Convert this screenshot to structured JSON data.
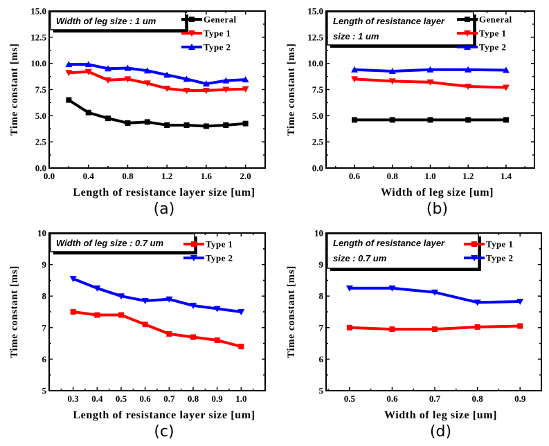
{
  "chart_data": [
    {
      "id": "a",
      "type": "line",
      "panel_label": "(a)",
      "annotation": [
        "Width of leg size : 1 um"
      ],
      "xlabel": "Length of resistance layer size [um]",
      "ylabel": "Time constant [ms]",
      "xlim": [
        0.0,
        2.2
      ],
      "ylim": [
        0.0,
        15.0
      ],
      "xticks": [
        0.0,
        0.4,
        0.8,
        1.2,
        1.6,
        2.0
      ],
      "xtick_labels": [
        "0.0",
        "0.4",
        "0.8",
        "1.2",
        "1.6",
        "2.0"
      ],
      "xminor": 0.2,
      "yticks": [
        0.0,
        2.5,
        5.0,
        7.5,
        10.0,
        12.5,
        15.0
      ],
      "ytick_labels": [
        "0.0",
        "2.5",
        "5.0",
        "7.5",
        "10.0",
        "12.5",
        "15.0"
      ],
      "yminor": 1.25,
      "legend_position": "top-right",
      "x": [
        0.2,
        0.4,
        0.6,
        0.8,
        1.0,
        1.2,
        1.4,
        1.6,
        1.8,
        2.0
      ],
      "series": [
        {
          "name": "General",
          "color": "#000000",
          "marker": "square",
          "values": [
            6.5,
            5.3,
            4.75,
            4.3,
            4.4,
            4.1,
            4.1,
            4.0,
            4.1,
            4.25
          ]
        },
        {
          "name": "Type 1",
          "color": "#ff0000",
          "marker": "triangle-down",
          "values": [
            9.1,
            9.2,
            8.4,
            8.5,
            8.1,
            7.6,
            7.4,
            7.4,
            7.5,
            7.55
          ]
        },
        {
          "name": "Type 2",
          "color": "#0000ff",
          "marker": "triangle-up",
          "values": [
            9.9,
            9.9,
            9.5,
            9.55,
            9.3,
            8.9,
            8.5,
            8.05,
            8.35,
            8.45
          ]
        }
      ]
    },
    {
      "id": "b",
      "type": "line",
      "panel_label": "(b)",
      "annotation": [
        "Length of resistance layer",
        "size : 1 um"
      ],
      "xlabel": "Width of leg size [um]",
      "ylabel": "Time constant [ms]",
      "xlim": [
        0.45,
        1.55
      ],
      "ylim": [
        0.0,
        15.0
      ],
      "xticks": [
        0.6,
        0.8,
        1.0,
        1.2,
        1.4
      ],
      "xtick_labels": [
        "0.6",
        "0.8",
        "1.0",
        "1.2",
        "1.4"
      ],
      "xminor": 0.1,
      "yticks": [
        0.0,
        2.5,
        5.0,
        7.5,
        10.0,
        12.5,
        15.0
      ],
      "ytick_labels": [
        "0.0",
        "2.5",
        "5.0",
        "7.5",
        "10.0",
        "12.5",
        "15.0"
      ],
      "yminor": 1.25,
      "legend_position": "top-right",
      "x": [
        0.6,
        0.8,
        1.0,
        1.2,
        1.4
      ],
      "series": [
        {
          "name": "General",
          "color": "#000000",
          "marker": "square",
          "values": [
            4.6,
            4.6,
            4.6,
            4.6,
            4.6
          ]
        },
        {
          "name": "Type 1",
          "color": "#ff0000",
          "marker": "triangle-down",
          "values": [
            8.5,
            8.3,
            8.2,
            7.8,
            7.7
          ]
        },
        {
          "name": "Type 2",
          "color": "#0000ff",
          "marker": "triangle-up",
          "values": [
            9.4,
            9.25,
            9.4,
            9.4,
            9.35
          ]
        }
      ]
    },
    {
      "id": "c",
      "type": "line",
      "panel_label": "(c)",
      "annotation": [
        "Width of leg size : 0.7 um"
      ],
      "xlabel": "Length of resistance layer size [um]",
      "ylabel": "Time constant [ms]",
      "xlim": [
        0.2,
        1.1
      ],
      "ylim": [
        5,
        10
      ],
      "xticks": [
        0.3,
        0.4,
        0.5,
        0.6,
        0.7,
        0.8,
        0.9,
        1.0
      ],
      "xtick_labels": [
        "0.3",
        "0.4",
        "0.5",
        "0.6",
        "0.7",
        "0.8",
        "0.9",
        "1.0"
      ],
      "xminor": 0.05,
      "yticks": [
        5,
        6,
        7,
        8,
        9,
        10
      ],
      "ytick_labels": [
        "5",
        "6",
        "7",
        "8",
        "9",
        "10"
      ],
      "yminor": 0.5,
      "legend_position": "top-right",
      "x": [
        0.3,
        0.4,
        0.5,
        0.6,
        0.7,
        0.8,
        0.9,
        1.0
      ],
      "series": [
        {
          "name": "Type 1",
          "color": "#ff0000",
          "marker": "square",
          "values": [
            7.5,
            7.4,
            7.4,
            7.1,
            6.8,
            6.7,
            6.6,
            6.4
          ]
        },
        {
          "name": "Type 2",
          "color": "#0000ff",
          "marker": "triangle-down",
          "values": [
            8.55,
            8.25,
            8.0,
            7.85,
            7.9,
            7.7,
            7.6,
            7.5
          ]
        }
      ]
    },
    {
      "id": "d",
      "type": "line",
      "panel_label": "(d)",
      "annotation": [
        "Length of resistance layer",
        "size : 0.7 um"
      ],
      "xlabel": "Width of leg size [um]",
      "ylabel": "Time constant [ms]",
      "xlim": [
        0.445,
        0.95
      ],
      "ylim": [
        5,
        10
      ],
      "xticks": [
        0.5,
        0.6,
        0.7,
        0.8,
        0.9
      ],
      "xtick_labels": [
        "0.5",
        "0.6",
        "0.7",
        "0.8",
        "0.9"
      ],
      "xminor": 0.05,
      "yticks": [
        5,
        6,
        7,
        8,
        9,
        10
      ],
      "ytick_labels": [
        "5",
        "6",
        "7",
        "8",
        "9",
        "10"
      ],
      "yminor": 0.5,
      "legend_position": "top-right",
      "x": [
        0.5,
        0.6,
        0.7,
        0.8,
        0.9
      ],
      "series": [
        {
          "name": "Type 1",
          "color": "#ff0000",
          "marker": "square",
          "values": [
            7.0,
            6.95,
            6.95,
            7.02,
            7.05
          ]
        },
        {
          "name": "Type 2",
          "color": "#0000ff",
          "marker": "triangle-down",
          "values": [
            8.25,
            8.25,
            8.12,
            7.8,
            7.83
          ]
        }
      ]
    }
  ]
}
